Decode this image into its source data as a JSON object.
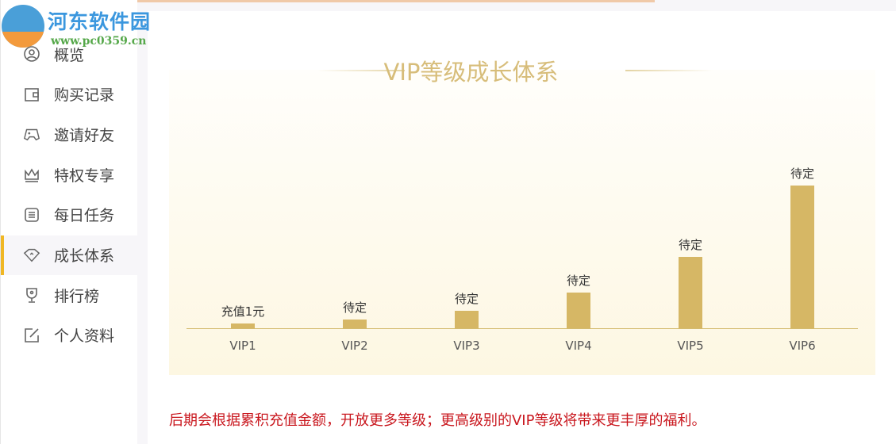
{
  "logo": {
    "title": "河东软件园",
    "url": "www.pc0359.cn"
  },
  "sidebar": {
    "items": [
      {
        "label": "概览",
        "icon": "user-circle-icon"
      },
      {
        "label": "购买记录",
        "icon": "wallet-icon"
      },
      {
        "label": "邀请好友",
        "icon": "gamepad-icon"
      },
      {
        "label": "特权专享",
        "icon": "crown-icon"
      },
      {
        "label": "每日任务",
        "icon": "list-icon"
      },
      {
        "label": "成长体系",
        "icon": "diamond-icon",
        "active": true
      },
      {
        "label": "排行榜",
        "icon": "trophy-icon"
      },
      {
        "label": "个人资料",
        "icon": "edit-icon"
      }
    ]
  },
  "main": {
    "title": "VIP等级成长体系",
    "note": "后期会根据累积充值金额，开放更多等级；更高级别的VIP等级将带来更丰厚的福利。"
  },
  "chart_data": {
    "type": "bar",
    "categories": [
      "VIP1",
      "VIP2",
      "VIP3",
      "VIP4",
      "VIP5",
      "VIP6"
    ],
    "values": [
      1,
      2,
      4,
      8,
      16,
      32
    ],
    "data_labels": [
      "充值1元",
      "待定",
      "待定",
      "待定",
      "待定",
      "待定"
    ],
    "bar_color": "#d6b765",
    "grid": false
  },
  "colors": {
    "accent": "#f0b724",
    "title": "#d7bd7a",
    "note": "#c9171e"
  }
}
